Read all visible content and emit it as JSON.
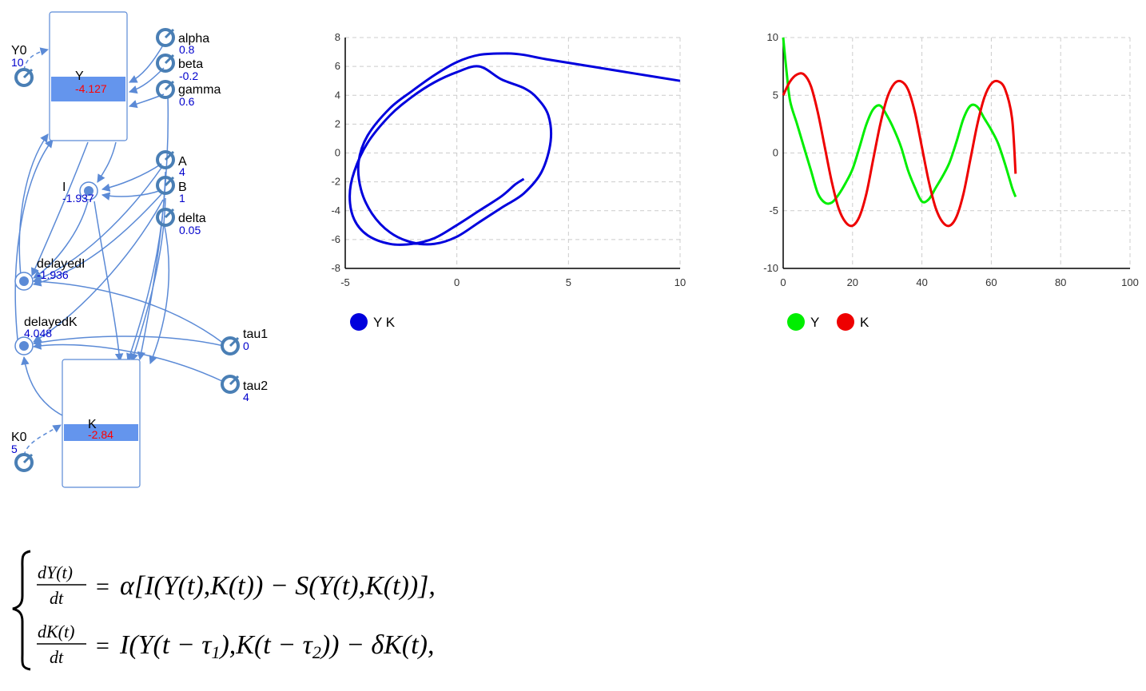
{
  "model": {
    "stocks": [
      {
        "id": "Y",
        "label": "Y",
        "value": "-4.127"
      },
      {
        "id": "K",
        "label": "K",
        "value": "-2.84"
      }
    ],
    "parameters": [
      {
        "id": "Y0",
        "label": "Y0",
        "value": "10"
      },
      {
        "id": "K0",
        "label": "K0",
        "value": "5"
      },
      {
        "id": "alpha",
        "label": "alpha",
        "value": "0.8"
      },
      {
        "id": "beta",
        "label": "beta",
        "value": "-0.2"
      },
      {
        "id": "gamma",
        "label": "gamma",
        "value": "0.6"
      },
      {
        "id": "A",
        "label": "A",
        "value": "4"
      },
      {
        "id": "B",
        "label": "B",
        "value": "1"
      },
      {
        "id": "delta",
        "label": "delta",
        "value": "0.05"
      },
      {
        "id": "tau1",
        "label": "tau1",
        "value": "0"
      },
      {
        "id": "tau2",
        "label": "tau2",
        "value": "4"
      }
    ],
    "variables": [
      {
        "id": "I",
        "label": "I",
        "value": "-1.937"
      },
      {
        "id": "delayedI",
        "label": "delayedI",
        "value": "-1.936"
      },
      {
        "id": "delayedK",
        "label": "delayedK",
        "value": "4.048"
      }
    ],
    "colors": {
      "link": "#5b8ad6",
      "stock_bar": "#6495ed",
      "param_icon": "#4a7fb5"
    }
  },
  "chart_data": [
    {
      "type": "line",
      "title": "",
      "xlabel": "",
      "ylabel": "",
      "xlim": [
        -5,
        10
      ],
      "ylim": [
        -8,
        8
      ],
      "x_ticks": [
        "-5",
        "0",
        "5",
        "10"
      ],
      "y_ticks": [
        "-8",
        "-6",
        "-4",
        "-2",
        "0",
        "2",
        "4",
        "6",
        "8"
      ],
      "grid": true,
      "legend_position": "bottom-left",
      "series": [
        {
          "name": "Y K",
          "color": "#0000dd",
          "x": [
            10,
            8,
            6,
            4,
            3,
            2.2,
            1,
            0,
            -1,
            -2,
            -3,
            -4,
            -4.4,
            -4.3,
            -3.8,
            -3,
            -2,
            -1,
            0,
            1,
            2,
            3,
            3.8,
            4.2,
            4.1,
            3.6,
            3,
            2,
            1,
            0,
            -1,
            -2,
            -3,
            -4,
            -4.6,
            -4.8,
            -4.6,
            -4,
            -3,
            -2,
            -1,
            0,
            1,
            2,
            2.6,
            3
          ],
          "y": [
            5,
            5.5,
            6,
            6.5,
            6.8,
            6.9,
            6.8,
            6.3,
            5.4,
            4.3,
            3.1,
            1.2,
            -0.6,
            -2.5,
            -4.2,
            -5.5,
            -6.2,
            -6.3,
            -5.8,
            -4.8,
            -3.8,
            -2.8,
            -1.3,
            0.8,
            2.6,
            3.8,
            4.5,
            5.1,
            6,
            5.6,
            4.9,
            3.9,
            2.6,
            0.7,
            -1.3,
            -3,
            -4.6,
            -5.7,
            -6.3,
            -6.3,
            -5.9,
            -5,
            -4,
            -3,
            -2.2,
            -1.8
          ]
        }
      ]
    },
    {
      "type": "line",
      "title": "",
      "xlabel": "",
      "ylabel": "",
      "xlim": [
        0,
        100
      ],
      "ylim": [
        -10,
        10
      ],
      "x_ticks": [
        "0",
        "20",
        "40",
        "60",
        "80",
        "100"
      ],
      "y_ticks": [
        "-10",
        "-5",
        "0",
        "5",
        "10"
      ],
      "grid": true,
      "legend_position": "bottom-left",
      "series": [
        {
          "name": "Y",
          "color": "#00ee00",
          "x": [
            0,
            1,
            2,
            4,
            6,
            8,
            10,
            12,
            14,
            16,
            18,
            20,
            22,
            24,
            26,
            28,
            30,
            32,
            34,
            36,
            38,
            40,
            42,
            44,
            46,
            48,
            50,
            52,
            54,
            56,
            58,
            60,
            62,
            64,
            66,
            67
          ],
          "y": [
            10,
            7,
            4.5,
            2.5,
            0.5,
            -1.5,
            -3.5,
            -4.3,
            -4.3,
            -3.6,
            -2.6,
            -1.4,
            0.5,
            2.5,
            3.8,
            4.1,
            3.2,
            2,
            0.5,
            -1.5,
            -3,
            -4.2,
            -4,
            -3,
            -2,
            -0.8,
            1,
            3,
            4.1,
            4,
            3,
            2,
            0.8,
            -1,
            -3,
            -3.8
          ]
        },
        {
          "name": "K",
          "color": "#ee0000",
          "x": [
            0,
            2,
            4,
            6,
            8,
            10,
            12,
            14,
            16,
            18,
            20,
            22,
            24,
            26,
            28,
            30,
            32,
            34,
            36,
            38,
            40,
            42,
            44,
            46,
            48,
            50,
            52,
            54,
            56,
            58,
            60,
            62,
            64,
            66,
            67
          ],
          "y": [
            5,
            6.2,
            6.8,
            6.8,
            5.8,
            3.5,
            0.5,
            -2.5,
            -4.8,
            -6,
            -6.3,
            -5.5,
            -3.5,
            -0.5,
            2.5,
            4.8,
            6,
            6.2,
            5.5,
            3.5,
            0.5,
            -2.5,
            -4.8,
            -6,
            -6.3,
            -5.5,
            -3.5,
            -0.5,
            2.5,
            4.8,
            6,
            6.2,
            5.5,
            3,
            -1.8
          ]
        }
      ]
    }
  ]
}
